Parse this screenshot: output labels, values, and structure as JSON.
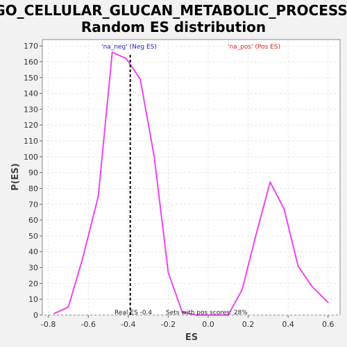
{
  "chart_data": {
    "type": "line",
    "title_line1": "GO_CELLULAR_GLUCAN_METABOLIC_PROCESS:",
    "title_line2": "Random ES distribution",
    "xlabel": "ES",
    "ylabel": "P(ES)",
    "xlim": [
      -0.83,
      0.66
    ],
    "ylim": [
      0,
      174
    ],
    "x_ticks": [
      -0.8,
      -0.6,
      -0.4,
      -0.2,
      0.0,
      0.2,
      0.4,
      0.6
    ],
    "x_tick_labels": [
      "-0.8",
      "-0.6",
      "-0.4",
      "-0.2",
      "0.0",
      "0.2",
      "0.4",
      "0.6"
    ],
    "y_ticks": [
      0,
      10,
      20,
      30,
      40,
      50,
      60,
      70,
      80,
      90,
      100,
      110,
      120,
      130,
      140,
      150,
      160,
      170
    ],
    "grid": true,
    "series": [
      {
        "color": "#ee44ee",
        "points": [
          [
            -0.77,
            1
          ],
          [
            -0.7,
            5
          ],
          [
            -0.63,
            35
          ],
          [
            -0.55,
            75
          ],
          [
            -0.48,
            166
          ],
          [
            -0.41,
            162
          ],
          [
            -0.34,
            149
          ],
          [
            -0.27,
            100
          ],
          [
            -0.2,
            27
          ],
          [
            -0.13,
            2
          ],
          [
            -0.06,
            0
          ],
          [
            0.03,
            0
          ],
          [
            0.1,
            0
          ],
          [
            0.17,
            16
          ],
          [
            0.24,
            51
          ],
          [
            0.31,
            84
          ],
          [
            0.38,
            67
          ],
          [
            0.45,
            31
          ],
          [
            0.52,
            18
          ],
          [
            0.6,
            8
          ]
        ]
      }
    ],
    "real_es": {
      "value": -0.39,
      "label": "Real ES -0.4",
      "color": "#000000"
    },
    "annotations": {
      "neg_label": "'na_neg' (Neg ES)",
      "neg_color": "#2222cc",
      "pos_label": "'na_pos' (Pos ES)",
      "pos_color": "#dd2222",
      "pos_scores_label": "Sets with pos scores: 28%"
    }
  }
}
